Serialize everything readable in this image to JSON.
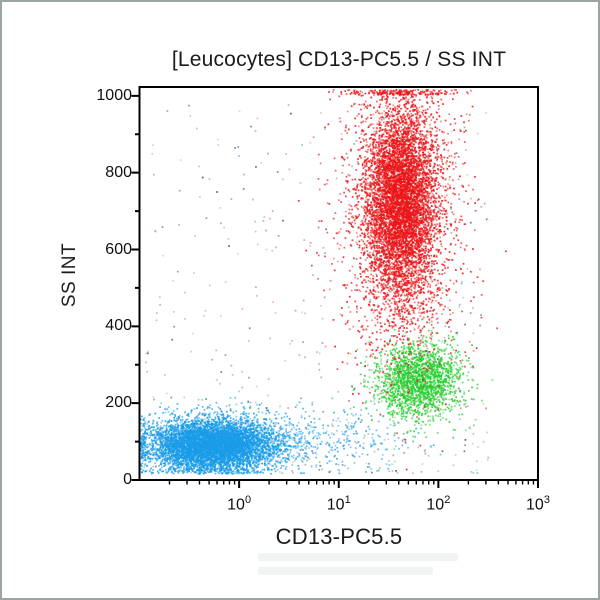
{
  "chart_data": {
    "type": "scatter",
    "subtype": "flow-cytometry-dot-plot",
    "title": "[Leucocytes] CD13-PC5.5 / SS INT",
    "xlabel": "CD13-PC5.5",
    "ylabel": "SS INT",
    "grid": false,
    "legend": null,
    "x_scale": "log",
    "x_range": [
      0.1,
      1000
    ],
    "x_tick_base": "10",
    "x_ticks": [
      {
        "exp": "0",
        "value": 1
      },
      {
        "exp": "1",
        "value": 10
      },
      {
        "exp": "2",
        "value": 100
      },
      {
        "exp": "3",
        "value": 1000
      }
    ],
    "x_minor_decades": [
      -1,
      0,
      1,
      2
    ],
    "y_scale": "linear",
    "y_range": [
      0,
      1023
    ],
    "y_major_ticks": [
      0,
      200,
      400,
      600,
      800,
      1000
    ],
    "y_minor_step": 100,
    "frame_color": "#000000",
    "populations": [
      {
        "name": "debris",
        "distribution": "sparse-uniform",
        "count": 430,
        "x_log10_range": [
          -1,
          2.5
        ],
        "y_range": [
          20,
          980
        ],
        "colors": [
          "#98a2a8",
          "#4a5560",
          "#d98a8a",
          "#86c98a",
          "#8ab8d9"
        ]
      },
      {
        "name": "lymphocytes-scatter-tail",
        "distribution": "gaussian",
        "color": "#3aa8ea",
        "count": 520,
        "x_log10_mean": 0.6,
        "x_log10_sd": 0.55,
        "y_mean": 108,
        "y_sd": 42
      },
      {
        "name": "lymphocytes",
        "distribution": "gaussian",
        "color": "#1a9ce8",
        "count": 6500,
        "x_log10_mean": -0.28,
        "x_log10_sd": 0.32,
        "y_mean": 92,
        "y_sd": 34
      },
      {
        "name": "monocytes",
        "distribution": "gaussian",
        "color": "#25ce2d",
        "count": 1950,
        "x_log10_mean": 1.8,
        "x_log10_sd": 0.21,
        "y_mean": 262,
        "y_sd": 48
      },
      {
        "name": "granulocytes-halo",
        "distribution": "gaussian",
        "color": "#ea1518",
        "count": 2600,
        "x_log10_mean": 1.61,
        "x_log10_sd": 0.3,
        "y_mean": 700,
        "y_sd": 195
      },
      {
        "name": "granulocytes",
        "distribution": "gaussian",
        "color": "#ea1518",
        "count": 5200,
        "x_log10_mean": 1.62,
        "x_log10_sd": 0.17,
        "y_mean": 730,
        "y_sd": 120
      }
    ]
  },
  "watermark": {
    "legible": false
  }
}
